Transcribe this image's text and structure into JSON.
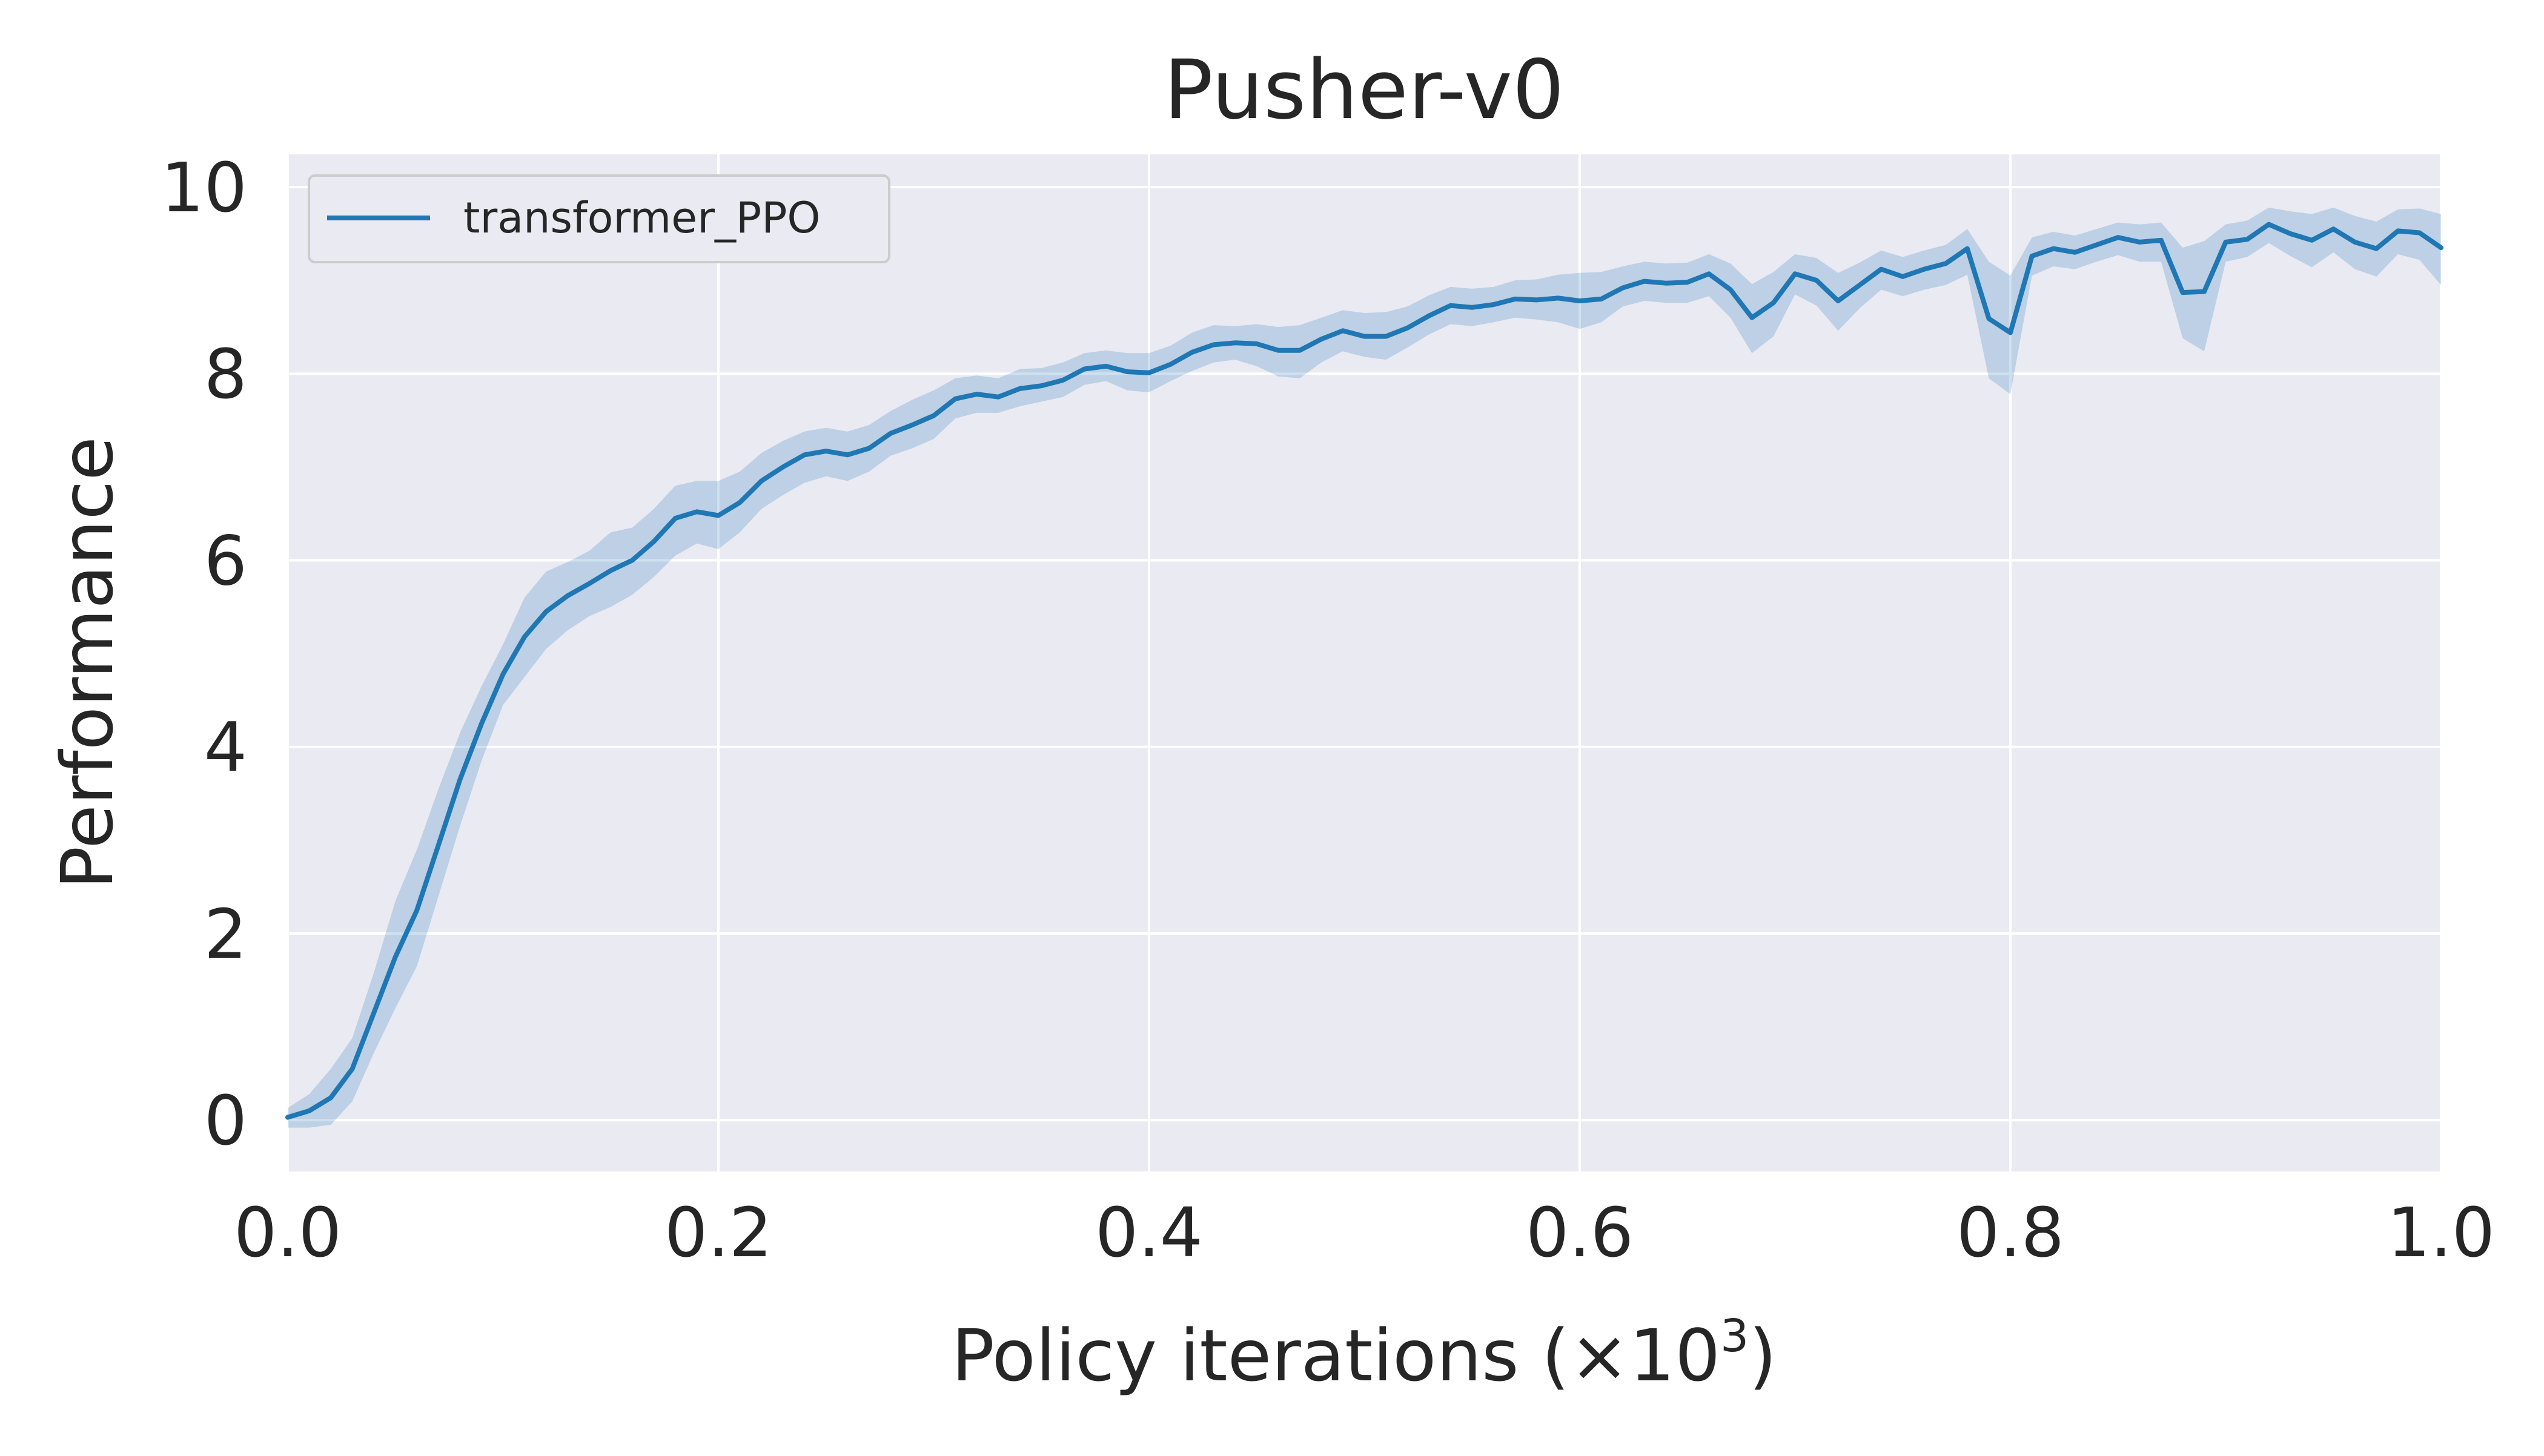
{
  "chart_data": {
    "type": "line",
    "title": "Pusher-v0",
    "xlabel_main": "Policy iterations (×10",
    "xlabel_sup": "3",
    "xlabel_close": ")",
    "ylabel": "Performance",
    "xlim": [
      0.0,
      1.0
    ],
    "ylim": [
      -0.55,
      10.35
    ],
    "xticks": [
      0.0,
      0.2,
      0.4,
      0.6,
      0.8,
      1.0
    ],
    "xtick_labels": [
      "0.0",
      "0.2",
      "0.4",
      "0.6",
      "0.8",
      "1.0"
    ],
    "yticks": [
      0,
      2,
      4,
      6,
      8,
      10
    ],
    "ytick_labels": [
      "0",
      "2",
      "4",
      "6",
      "8",
      "10"
    ],
    "grid": true,
    "legend_position": "top-left",
    "colors": {
      "line": "#1f77b4",
      "band": "#1f77b4",
      "plot_background": "#eaeaf2",
      "grid": "#ffffff"
    },
    "series": [
      {
        "name": "transformer_PPO",
        "x": [
          0.0,
          0.01,
          0.02,
          0.03,
          0.04,
          0.05,
          0.06,
          0.07,
          0.08,
          0.09,
          0.1,
          0.11,
          0.12,
          0.13,
          0.14,
          0.15,
          0.16,
          0.17,
          0.18,
          0.19,
          0.2,
          0.21,
          0.22,
          0.23,
          0.24,
          0.25,
          0.26,
          0.27,
          0.28,
          0.29,
          0.3,
          0.31,
          0.32,
          0.33,
          0.34,
          0.35,
          0.36,
          0.37,
          0.38,
          0.39,
          0.4,
          0.41,
          0.42,
          0.43,
          0.44,
          0.45,
          0.46,
          0.47,
          0.48,
          0.49,
          0.5,
          0.51,
          0.52,
          0.53,
          0.54,
          0.55,
          0.56,
          0.57,
          0.58,
          0.59,
          0.6,
          0.61,
          0.62,
          0.63,
          0.64,
          0.65,
          0.66,
          0.67,
          0.68,
          0.69,
          0.7,
          0.71,
          0.72,
          0.73,
          0.74,
          0.75,
          0.76,
          0.77,
          0.78,
          0.79,
          0.8,
          0.81,
          0.82,
          0.83,
          0.84,
          0.85,
          0.86,
          0.87,
          0.88,
          0.89,
          0.9,
          0.91,
          0.92,
          0.93,
          0.94,
          0.95,
          0.96,
          0.97,
          0.98,
          0.99,
          1.0
        ],
        "y": [
          0.03,
          0.1,
          0.24,
          0.55,
          1.15,
          1.75,
          2.25,
          2.95,
          3.65,
          4.25,
          4.78,
          5.18,
          5.45,
          5.62,
          5.75,
          5.89,
          6.0,
          6.2,
          6.45,
          6.52,
          6.48,
          6.62,
          6.85,
          7.0,
          7.13,
          7.17,
          7.13,
          7.2,
          7.36,
          7.45,
          7.55,
          7.73,
          7.78,
          7.75,
          7.84,
          7.87,
          7.93,
          8.05,
          8.08,
          8.02,
          8.01,
          8.1,
          8.23,
          8.31,
          8.33,
          8.32,
          8.25,
          8.25,
          8.37,
          8.46,
          8.4,
          8.4,
          8.49,
          8.62,
          8.73,
          8.71,
          8.74,
          8.8,
          8.79,
          8.81,
          8.78,
          8.8,
          8.92,
          8.99,
          8.97,
          8.98,
          9.07,
          8.9,
          8.6,
          8.76,
          9.07,
          9.0,
          8.78,
          8.95,
          9.12,
          9.04,
          9.12,
          9.18,
          9.34,
          8.59,
          8.44,
          9.26,
          9.34,
          9.3,
          9.38,
          9.46,
          9.41,
          9.43,
          8.87,
          8.88,
          9.41,
          9.44,
          9.6,
          9.5,
          9.43,
          9.55,
          9.41,
          9.34,
          9.53,
          9.51,
          9.35
        ],
        "lower": [
          -0.08,
          -0.08,
          -0.05,
          0.2,
          0.72,
          1.2,
          1.65,
          2.4,
          3.15,
          3.85,
          4.45,
          4.75,
          5.05,
          5.25,
          5.4,
          5.5,
          5.63,
          5.82,
          6.05,
          6.18,
          6.12,
          6.3,
          6.55,
          6.7,
          6.83,
          6.9,
          6.85,
          6.95,
          7.12,
          7.2,
          7.3,
          7.52,
          7.58,
          7.58,
          7.65,
          7.7,
          7.75,
          7.88,
          7.92,
          7.82,
          7.8,
          7.92,
          8.03,
          8.12,
          8.15,
          8.08,
          7.97,
          7.95,
          8.12,
          8.24,
          8.18,
          8.15,
          8.28,
          8.42,
          8.53,
          8.51,
          8.55,
          8.6,
          8.58,
          8.55,
          8.48,
          8.55,
          8.72,
          8.78,
          8.76,
          8.76,
          8.83,
          8.6,
          8.22,
          8.4,
          8.85,
          8.73,
          8.46,
          8.7,
          8.9,
          8.83,
          8.9,
          8.95,
          9.06,
          7.95,
          7.78,
          9.05,
          9.15,
          9.12,
          9.2,
          9.27,
          9.2,
          9.2,
          8.38,
          8.24,
          9.2,
          9.25,
          9.4,
          9.26,
          9.14,
          9.3,
          9.12,
          9.04,
          9.28,
          9.22,
          8.95
        ],
        "upper": [
          0.13,
          0.28,
          0.55,
          0.88,
          1.58,
          2.35,
          2.9,
          3.55,
          4.15,
          4.65,
          5.1,
          5.6,
          5.88,
          5.98,
          6.1,
          6.3,
          6.35,
          6.55,
          6.8,
          6.85,
          6.85,
          6.95,
          7.15,
          7.28,
          7.38,
          7.42,
          7.38,
          7.45,
          7.6,
          7.72,
          7.82,
          7.95,
          7.98,
          7.95,
          8.05,
          8.06,
          8.12,
          8.22,
          8.25,
          8.22,
          8.22,
          8.3,
          8.44,
          8.52,
          8.51,
          8.53,
          8.5,
          8.52,
          8.6,
          8.68,
          8.65,
          8.66,
          8.72,
          8.84,
          8.93,
          8.91,
          8.93,
          9.0,
          9.01,
          9.06,
          9.08,
          9.09,
          9.15,
          9.2,
          9.18,
          9.19,
          9.28,
          9.18,
          8.96,
          9.09,
          9.28,
          9.24,
          9.08,
          9.19,
          9.32,
          9.25,
          9.32,
          9.38,
          9.55,
          9.2,
          9.05,
          9.46,
          9.52,
          9.48,
          9.55,
          9.62,
          9.6,
          9.62,
          9.35,
          9.42,
          9.6,
          9.64,
          9.78,
          9.74,
          9.71,
          9.78,
          9.69,
          9.63,
          9.76,
          9.77,
          9.71
        ]
      }
    ]
  }
}
